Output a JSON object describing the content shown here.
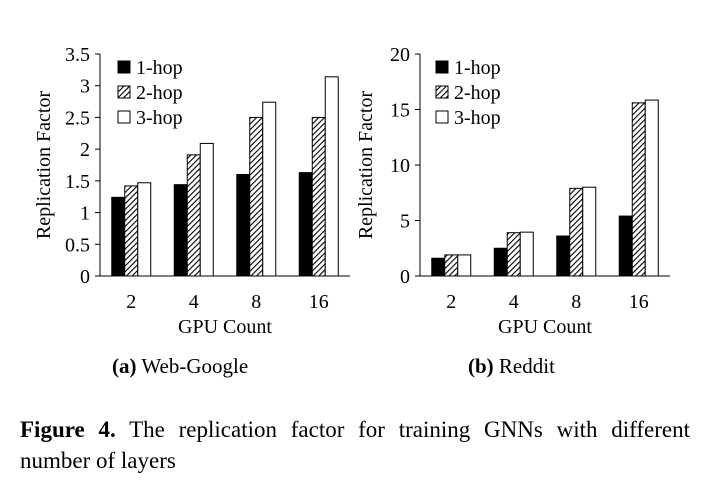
{
  "patterns": {
    "hatch_color": "#000000"
  },
  "chart_data": [
    {
      "type": "bar",
      "subcaption_label": "(a)",
      "subcaption_text": "Web-Google",
      "xlabel": "GPU Count",
      "ylabel": "Replication Factor",
      "categories": [
        "2",
        "4",
        "8",
        "16"
      ],
      "yticks": [
        "0",
        "0.5",
        "1",
        "1.5",
        "2",
        "2.5",
        "3",
        "3.5"
      ],
      "ylim": [
        0,
        3.5
      ],
      "grid": false,
      "legend_position": "top-left",
      "series": [
        {
          "name": "1-hop",
          "fill": "solid",
          "color": "#000000",
          "values": [
            1.24,
            1.44,
            1.6,
            1.63
          ]
        },
        {
          "name": "2-hop",
          "fill": "hatched",
          "color": "#000000",
          "values": [
            1.42,
            1.91,
            2.5,
            2.5
          ]
        },
        {
          "name": "3-hop",
          "fill": "hollow",
          "color": "#ffffff",
          "values": [
            1.47,
            2.09,
            2.74,
            3.14
          ]
        }
      ]
    },
    {
      "type": "bar",
      "subcaption_label": "(b)",
      "subcaption_text": "Reddit",
      "xlabel": "GPU Count",
      "ylabel": "Replication Factor",
      "categories": [
        "2",
        "4",
        "8",
        "16"
      ],
      "yticks": [
        "0",
        "5",
        "10",
        "15",
        "20"
      ],
      "ylim": [
        0,
        20
      ],
      "grid": false,
      "legend_position": "top-left",
      "series": [
        {
          "name": "1-hop",
          "fill": "solid",
          "color": "#000000",
          "values": [
            1.6,
            2.5,
            3.6,
            5.4
          ]
        },
        {
          "name": "2-hop",
          "fill": "hatched",
          "color": "#000000",
          "values": [
            1.9,
            3.9,
            7.9,
            15.6
          ]
        },
        {
          "name": "3-hop",
          "fill": "hollow",
          "color": "#ffffff",
          "values": [
            1.9,
            3.95,
            8.0,
            15.85
          ]
        }
      ]
    }
  ],
  "caption": {
    "label": "Figure 4.",
    "text": "The replication factor for training GNNs with different number of layers"
  }
}
